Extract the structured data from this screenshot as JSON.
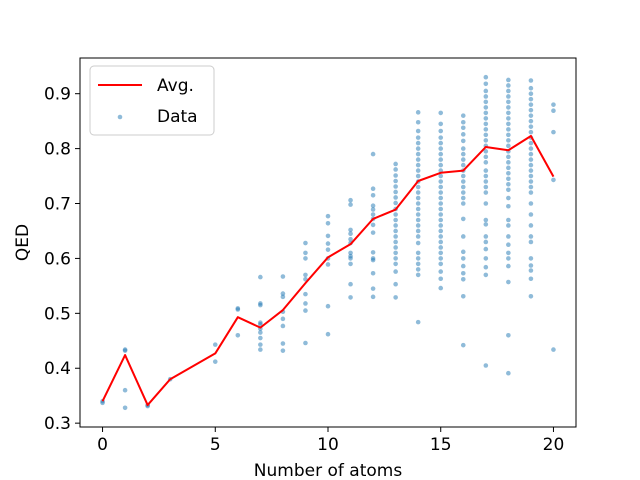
{
  "chart_data": {
    "type": "scatter",
    "xlabel": "Number of atoms",
    "ylabel": "QED",
    "xlim": [
      -1,
      21
    ],
    "ylim": [
      0.293,
      0.965
    ],
    "xticks": [
      0,
      5,
      10,
      15,
      20
    ],
    "yticks": [
      0.3,
      0.4,
      0.5,
      0.6,
      0.7,
      0.8,
      0.9
    ],
    "grid": false,
    "legend": {
      "placement": "top-left",
      "entries": [
        "Avg.",
        "Data"
      ]
    },
    "colors": {
      "avg": "#ff0000",
      "data": "#1f77b4"
    },
    "series": [
      {
        "name": "Avg.",
        "kind": "line",
        "x": [
          0,
          1,
          2,
          3,
          5,
          6,
          7,
          8,
          9,
          10,
          11,
          12,
          13,
          14,
          15,
          16,
          17,
          18,
          19,
          20
        ],
        "y": [
          0.34,
          0.424,
          0.333,
          0.38,
          0.427,
          0.493,
          0.474,
          0.506,
          0.555,
          0.602,
          0.626,
          0.672,
          0.689,
          0.741,
          0.756,
          0.76,
          0.803,
          0.797,
          0.823,
          0.749
        ]
      },
      {
        "name": "Data",
        "kind": "scatter",
        "points": [
          [
            0,
            0.34
          ],
          [
            0,
            0.337
          ],
          [
            1,
            0.434
          ],
          [
            1,
            0.432
          ],
          [
            1,
            0.36
          ],
          [
            1,
            0.328
          ],
          [
            2,
            0.333
          ],
          [
            2,
            0.331
          ],
          [
            3,
            0.38
          ],
          [
            5,
            0.443
          ],
          [
            5,
            0.412
          ],
          [
            6,
            0.509
          ],
          [
            6,
            0.507
          ],
          [
            6,
            0.46
          ],
          [
            7,
            0.566
          ],
          [
            7,
            0.518
          ],
          [
            7,
            0.515
          ],
          [
            7,
            0.483
          ],
          [
            7,
            0.48
          ],
          [
            7,
            0.472
          ],
          [
            7,
            0.465
          ],
          [
            7,
            0.455
          ],
          [
            7,
            0.443
          ],
          [
            7,
            0.434
          ],
          [
            8,
            0.567
          ],
          [
            8,
            0.536
          ],
          [
            8,
            0.53
          ],
          [
            8,
            0.503
          ],
          [
            8,
            0.49
          ],
          [
            8,
            0.477
          ],
          [
            8,
            0.445
          ],
          [
            8,
            0.432
          ],
          [
            9,
            0.628
          ],
          [
            9,
            0.61
          ],
          [
            9,
            0.6
          ],
          [
            9,
            0.57
          ],
          [
            9,
            0.562
          ],
          [
            9,
            0.535
          ],
          [
            9,
            0.518
          ],
          [
            9,
            0.505
          ],
          [
            9,
            0.446
          ],
          [
            10,
            0.677
          ],
          [
            10,
            0.664
          ],
          [
            10,
            0.641
          ],
          [
            10,
            0.627
          ],
          [
            10,
            0.616
          ],
          [
            10,
            0.6
          ],
          [
            10,
            0.589
          ],
          [
            10,
            0.513
          ],
          [
            10,
            0.462
          ],
          [
            11,
            0.706
          ],
          [
            11,
            0.698
          ],
          [
            11,
            0.652
          ],
          [
            11,
            0.645
          ],
          [
            11,
            0.635
          ],
          [
            11,
            0.628
          ],
          [
            11,
            0.61
          ],
          [
            11,
            0.604
          ],
          [
            11,
            0.6
          ],
          [
            11,
            0.59
          ],
          [
            11,
            0.553
          ],
          [
            11,
            0.529
          ],
          [
            12,
            0.79
          ],
          [
            12,
            0.727
          ],
          [
            12,
            0.715
          ],
          [
            12,
            0.696
          ],
          [
            12,
            0.689
          ],
          [
            12,
            0.68
          ],
          [
            12,
            0.672
          ],
          [
            12,
            0.661
          ],
          [
            12,
            0.647
          ],
          [
            12,
            0.611
          ],
          [
            12,
            0.6
          ],
          [
            12,
            0.597
          ],
          [
            12,
            0.573
          ],
          [
            12,
            0.545
          ],
          [
            12,
            0.53
          ],
          [
            13,
            0.772
          ],
          [
            13,
            0.762
          ],
          [
            13,
            0.751
          ],
          [
            13,
            0.741
          ],
          [
            13,
            0.731
          ],
          [
            13,
            0.721
          ],
          [
            13,
            0.711
          ],
          [
            13,
            0.701
          ],
          [
            13,
            0.69
          ],
          [
            13,
            0.68
          ],
          [
            13,
            0.67
          ],
          [
            13,
            0.66
          ],
          [
            13,
            0.65
          ],
          [
            13,
            0.64
          ],
          [
            13,
            0.63
          ],
          [
            13,
            0.62
          ],
          [
            13,
            0.61
          ],
          [
            13,
            0.6
          ],
          [
            13,
            0.59
          ],
          [
            13,
            0.576
          ],
          [
            13,
            0.553
          ],
          [
            13,
            0.529
          ],
          [
            14,
            0.866
          ],
          [
            14,
            0.848
          ],
          [
            14,
            0.832
          ],
          [
            14,
            0.82
          ],
          [
            14,
            0.81
          ],
          [
            14,
            0.8
          ],
          [
            14,
            0.79
          ],
          [
            14,
            0.78
          ],
          [
            14,
            0.77
          ],
          [
            14,
            0.76
          ],
          [
            14,
            0.75
          ],
          [
            14,
            0.74
          ],
          [
            14,
            0.73
          ],
          [
            14,
            0.72
          ],
          [
            14,
            0.71
          ],
          [
            14,
            0.7
          ],
          [
            14,
            0.69
          ],
          [
            14,
            0.68
          ],
          [
            14,
            0.67
          ],
          [
            14,
            0.66
          ],
          [
            14,
            0.65
          ],
          [
            14,
            0.64
          ],
          [
            14,
            0.628
          ],
          [
            14,
            0.61
          ],
          [
            14,
            0.6
          ],
          [
            14,
            0.59
          ],
          [
            14,
            0.58
          ],
          [
            14,
            0.57
          ],
          [
            14,
            0.484
          ],
          [
            15,
            0.865
          ],
          [
            15,
            0.845
          ],
          [
            15,
            0.832
          ],
          [
            15,
            0.82
          ],
          [
            15,
            0.81
          ],
          [
            15,
            0.8
          ],
          [
            15,
            0.79
          ],
          [
            15,
            0.78
          ],
          [
            15,
            0.77
          ],
          [
            15,
            0.76
          ],
          [
            15,
            0.75
          ],
          [
            15,
            0.74
          ],
          [
            15,
            0.73
          ],
          [
            15,
            0.72
          ],
          [
            15,
            0.71
          ],
          [
            15,
            0.7
          ],
          [
            15,
            0.69
          ],
          [
            15,
            0.68
          ],
          [
            15,
            0.67
          ],
          [
            15,
            0.66
          ],
          [
            15,
            0.65
          ],
          [
            15,
            0.64
          ],
          [
            15,
            0.63
          ],
          [
            15,
            0.62
          ],
          [
            15,
            0.61
          ],
          [
            15,
            0.6
          ],
          [
            15,
            0.59
          ],
          [
            15,
            0.576
          ],
          [
            15,
            0.563
          ],
          [
            15,
            0.546
          ],
          [
            16,
            0.86
          ],
          [
            16,
            0.848
          ],
          [
            16,
            0.838
          ],
          [
            16,
            0.826
          ],
          [
            16,
            0.814
          ],
          [
            16,
            0.8
          ],
          [
            16,
            0.79
          ],
          [
            16,
            0.78
          ],
          [
            16,
            0.77
          ],
          [
            16,
            0.76
          ],
          [
            16,
            0.75
          ],
          [
            16,
            0.74
          ],
          [
            16,
            0.73
          ],
          [
            16,
            0.72
          ],
          [
            16,
            0.71
          ],
          [
            16,
            0.7
          ],
          [
            16,
            0.672
          ],
          [
            16,
            0.64
          ],
          [
            16,
            0.612
          ],
          [
            16,
            0.6
          ],
          [
            16,
            0.586
          ],
          [
            16,
            0.573
          ],
          [
            16,
            0.562
          ],
          [
            16,
            0.531
          ],
          [
            16,
            0.442
          ],
          [
            17,
            0.93
          ],
          [
            17,
            0.918
          ],
          [
            17,
            0.905
          ],
          [
            17,
            0.895
          ],
          [
            17,
            0.885
          ],
          [
            17,
            0.875
          ],
          [
            17,
            0.865
          ],
          [
            17,
            0.855
          ],
          [
            17,
            0.845
          ],
          [
            17,
            0.835
          ],
          [
            17,
            0.825
          ],
          [
            17,
            0.815
          ],
          [
            17,
            0.805
          ],
          [
            17,
            0.795
          ],
          [
            17,
            0.785
          ],
          [
            17,
            0.775
          ],
          [
            17,
            0.76
          ],
          [
            17,
            0.75
          ],
          [
            17,
            0.74
          ],
          [
            17,
            0.73
          ],
          [
            17,
            0.72
          ],
          [
            17,
            0.7
          ],
          [
            17,
            0.67
          ],
          [
            17,
            0.662
          ],
          [
            17,
            0.64
          ],
          [
            17,
            0.63
          ],
          [
            17,
            0.617
          ],
          [
            17,
            0.6
          ],
          [
            17,
            0.584
          ],
          [
            17,
            0.57
          ],
          [
            17,
            0.405
          ],
          [
            18,
            0.925
          ],
          [
            18,
            0.915
          ],
          [
            18,
            0.905
          ],
          [
            18,
            0.895
          ],
          [
            18,
            0.885
          ],
          [
            18,
            0.875
          ],
          [
            18,
            0.865
          ],
          [
            18,
            0.855
          ],
          [
            18,
            0.845
          ],
          [
            18,
            0.835
          ],
          [
            18,
            0.825
          ],
          [
            18,
            0.815
          ],
          [
            18,
            0.805
          ],
          [
            18,
            0.795
          ],
          [
            18,
            0.785
          ],
          [
            18,
            0.775
          ],
          [
            18,
            0.765
          ],
          [
            18,
            0.755
          ],
          [
            18,
            0.745
          ],
          [
            18,
            0.735
          ],
          [
            18,
            0.725
          ],
          [
            18,
            0.71
          ],
          [
            18,
            0.695
          ],
          [
            18,
            0.67
          ],
          [
            18,
            0.66
          ],
          [
            18,
            0.64
          ],
          [
            18,
            0.625
          ],
          [
            18,
            0.61
          ],
          [
            18,
            0.6
          ],
          [
            18,
            0.586
          ],
          [
            18,
            0.557
          ],
          [
            18,
            0.46
          ],
          [
            18,
            0.391
          ],
          [
            19,
            0.924
          ],
          [
            19,
            0.91
          ],
          [
            19,
            0.9
          ],
          [
            19,
            0.89
          ],
          [
            19,
            0.88
          ],
          [
            19,
            0.87
          ],
          [
            19,
            0.86
          ],
          [
            19,
            0.85
          ],
          [
            19,
            0.84
          ],
          [
            19,
            0.83
          ],
          [
            19,
            0.82
          ],
          [
            19,
            0.81
          ],
          [
            19,
            0.8
          ],
          [
            19,
            0.79
          ],
          [
            19,
            0.78
          ],
          [
            19,
            0.77
          ],
          [
            19,
            0.76
          ],
          [
            19,
            0.75
          ],
          [
            19,
            0.74
          ],
          [
            19,
            0.73
          ],
          [
            19,
            0.72
          ],
          [
            19,
            0.7
          ],
          [
            19,
            0.68
          ],
          [
            19,
            0.66
          ],
          [
            19,
            0.64
          ],
          [
            19,
            0.63
          ],
          [
            19,
            0.6
          ],
          [
            19,
            0.587
          ],
          [
            19,
            0.578
          ],
          [
            19,
            0.563
          ],
          [
            19,
            0.531
          ],
          [
            20,
            0.88
          ],
          [
            20,
            0.869
          ],
          [
            20,
            0.83
          ],
          [
            20,
            0.743
          ],
          [
            20,
            0.434
          ]
        ]
      }
    ]
  }
}
